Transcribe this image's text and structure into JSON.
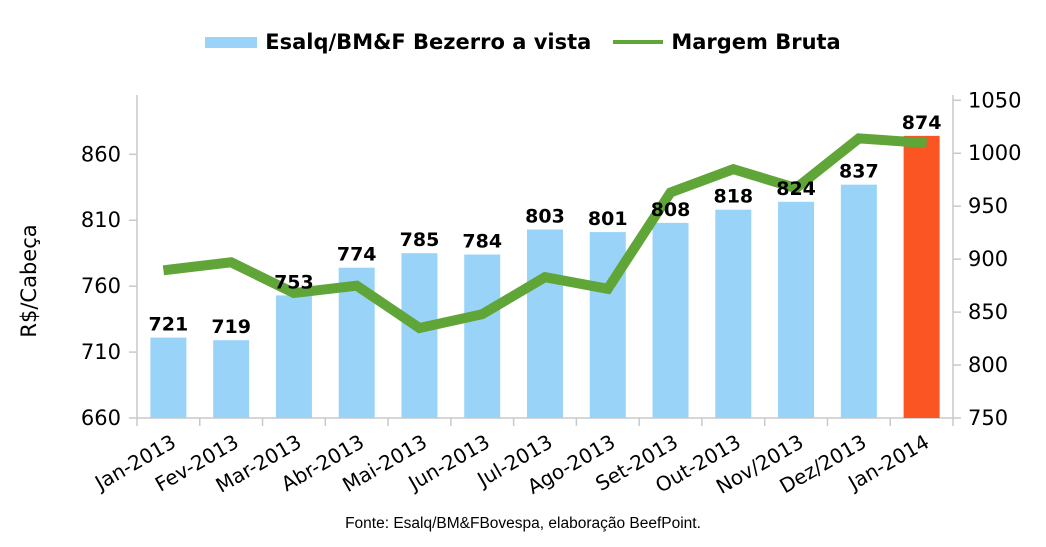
{
  "legend": {
    "series1": "Esalq/BM&F Bezerro a vista",
    "series2": "Margem Bruta"
  },
  "footer": "Fonte: Esalq/BM&FBovespa, elaboração BeefPoint.",
  "chart_data": {
    "type": "bar",
    "title": "",
    "categories": [
      "Jan-2013",
      "Fev-2013",
      "Mar-2013",
      "Abr-2013",
      "Mai-2013",
      "Jun-2013",
      "Jul-2013",
      "Ago-2013",
      "Set-2013",
      "Out-2013",
      "Nov/2013",
      "Dez/2013",
      "Jan-2014"
    ],
    "series": [
      {
        "name": "Esalq/BM&F Bezerro a vista",
        "type": "bar",
        "axis": "left",
        "values": [
          721,
          719,
          753,
          774,
          785,
          784,
          803,
          801,
          808,
          818,
          824,
          837,
          874
        ],
        "color": "#99D3F8",
        "highlight_color": "#FA5523",
        "highlight_index": 12,
        "data_labels": true
      },
      {
        "name": "Margem Bruta",
        "type": "line",
        "axis": "right",
        "values": [
          890,
          897,
          868,
          875,
          835,
          848,
          883,
          872,
          963,
          985,
          967,
          1014,
          1010
        ],
        "color": "#5FA537"
      }
    ],
    "left_axis": {
      "label": "R$/Cabeça",
      "ticks": [
        660,
        710,
        760,
        810,
        860
      ],
      "min": 660,
      "max": 905
    },
    "right_axis": {
      "label": "",
      "ticks": [
        750,
        800,
        850,
        900,
        950,
        1000,
        1050
      ],
      "min": 750,
      "max": 1055
    },
    "grid": false,
    "legend_position": "top",
    "axis_color": "#C9C9C9"
  }
}
